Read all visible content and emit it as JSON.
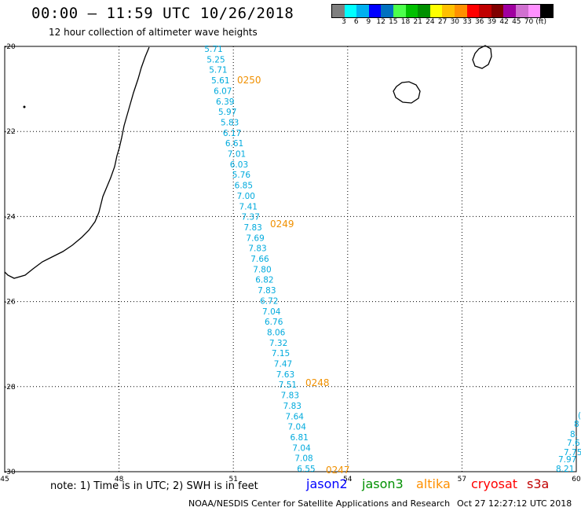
{
  "header": {
    "title": "00:00 – 11:59 UTC 10/26/2018",
    "subtitle": "12 hour collection of altimeter wave heights"
  },
  "colorbar": {
    "colors": [
      "#7f7f7f",
      "#00ffff",
      "#00b0f0",
      "#0000ff",
      "#0070c0",
      "#4cff4c",
      "#00c000",
      "#009000",
      "#ffff00",
      "#ffc000",
      "#ff9000",
      "#ff0000",
      "#c00000",
      "#800000",
      "#a000a0",
      "#d070d0",
      "#ff90ff",
      "#000000"
    ],
    "labels": [
      "3",
      "6",
      "9",
      "12",
      "15",
      "18",
      "21",
      "24",
      "27",
      "30",
      "33",
      "36",
      "39",
      "42",
      "45",
      "70",
      "(ft)"
    ]
  },
  "map": {
    "lon_ticks": [
      "45",
      "48",
      "51",
      "54",
      "57",
      "60"
    ],
    "lat_ticks": [
      "-20",
      "-22",
      "-24",
      "-26",
      "-28",
      "-30"
    ],
    "lon_range": [
      45,
      60
    ],
    "lat_range": [
      -20,
      -30
    ],
    "track_color": "#00aadd",
    "time_color": "#f09000",
    "track_values": [
      "5.71",
      "5.25",
      "5.71",
      "5.61",
      "6.07",
      "6.39",
      "5.97",
      "5.83",
      "6.17",
      "6.61",
      "7.01",
      "6.03",
      "5.76",
      "6.85",
      "7.00",
      "7.41",
      "7.37",
      "7.83",
      "7.69",
      "7.83",
      "7.66",
      "7.80",
      "6.82",
      "7.83",
      "6.72",
      "7.04",
      "6.76",
      "8.06",
      "7.32",
      "7.15",
      "7.47",
      "7.63",
      "7.51",
      "7.83",
      "7.83",
      "7.64",
      "7.04",
      "6.81",
      "7.04",
      "7.08",
      "6.55"
    ],
    "time_labels": [
      "0250",
      "0249",
      "0248",
      "0247"
    ],
    "edge_values": [
      "8.21",
      "7.97",
      "7.75",
      "7.6",
      "8.",
      "8",
      "("
    ]
  },
  "legend": {
    "note": "note:  1) Time is in UTC;  2) SWH is in feet",
    "satellites": [
      {
        "name": "jason2",
        "color": "#0000ff"
      },
      {
        "name": "jason3",
        "color": "#009000"
      },
      {
        "name": "altika",
        "color": "#ff9000"
      },
      {
        "name": "cryosat",
        "color": "#ff0000"
      },
      {
        "name": "s3a",
        "color": "#c00000"
      }
    ]
  },
  "footer": {
    "credit": "NOAA/NESDIS Center for Satellite Applications and Research",
    "timestamp": "Oct 27 12:27:12 UTC 2018"
  }
}
